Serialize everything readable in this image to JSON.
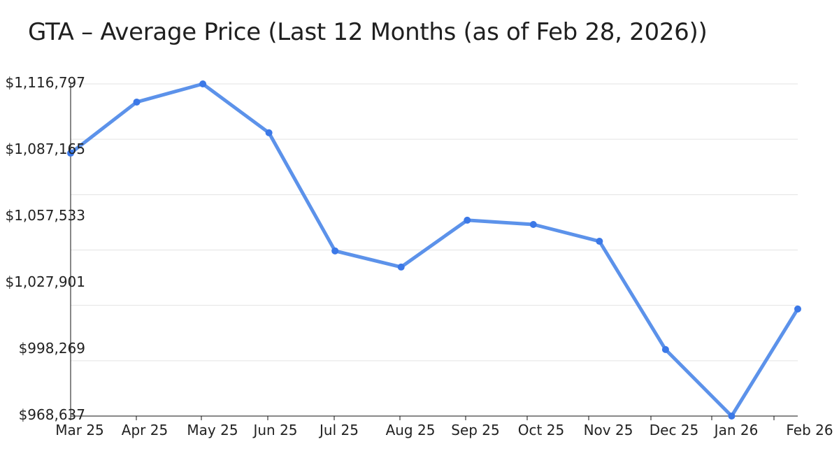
{
  "chart_data": {
    "type": "line",
    "title": "GTA – Average Price (Last 12 Months (as of Feb 28, 2026))",
    "xlabel": "",
    "ylabel": "",
    "categories": [
      "Mar 25",
      "Apr 25",
      "May 25",
      "Jun 25",
      "Jul 25",
      "Aug 25",
      "Sep 25",
      "Oct 25",
      "Nov 25",
      "Dec 25",
      "Jan 26",
      "Feb 26"
    ],
    "series": [
      {
        "name": "Average Price",
        "color": "#4a86e8",
        "values": [
          1085900,
          1108700,
          1116797,
          1095000,
          1042300,
          1035100,
          1056000,
          1054100,
          1046600,
          998300,
          968637,
          1016400
        ]
      }
    ],
    "yticks": [
      "$1,116,797",
      "$1,087,165",
      "$1,057,533",
      "$1,027,901",
      "$998,269",
      "$968,637"
    ],
    "ytick_values": [
      1116797,
      1087165,
      1057533,
      1027901,
      998269,
      968637
    ],
    "ylim": [
      968637,
      1116797
    ],
    "grid": true,
    "legend": "none"
  },
  "colors": {
    "line": "#4a86e8",
    "marker": "#3b78e7",
    "grid": "#e3e3e3",
    "axis": "#111111"
  }
}
